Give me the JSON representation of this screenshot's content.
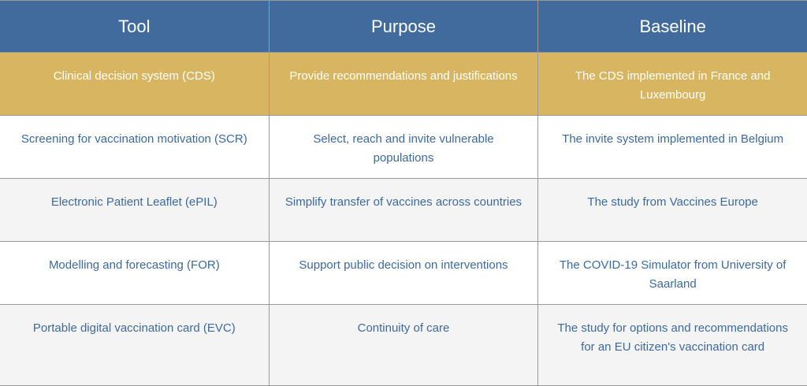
{
  "colors": {
    "header": "#416b9c",
    "highlight": "#d8b561",
    "text": "#3d6a9e",
    "alt_row": "#f4f4f4"
  },
  "headers": [
    "Tool",
    "Purpose",
    "Baseline"
  ],
  "rows": [
    [
      "Clinical decision system (CDS)",
      "Provide recommendations and justifications",
      "The CDS implemented in France and Luxembourg"
    ],
    [
      "Screening for vaccination motivation (SCR)",
      "Select, reach and invite vulnerable populations",
      "The invite system implemented in Belgium"
    ],
    [
      "Electronic Patient Leaflet (ePIL)",
      "Simplify transfer of vaccines across countries",
      "The study from Vaccines Europe"
    ],
    [
      "Modelling and forecasting (FOR)",
      "Support public decision on interventions",
      "The COVID-19 Simulator from University of Saarland"
    ],
    [
      "Portable digital vaccination card (EVC)",
      "Continuity of care",
      "The study for options and recommendations for an EU citizen's vaccination card"
    ]
  ]
}
